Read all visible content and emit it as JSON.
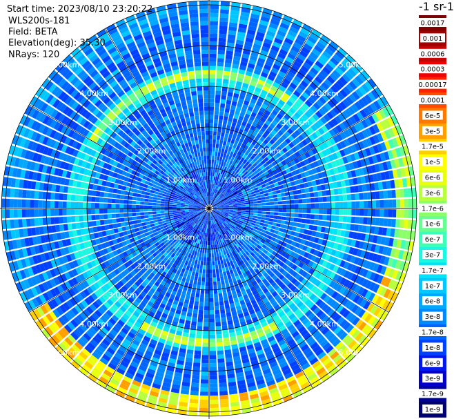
{
  "info": {
    "start_time": "Start time: 2023/08/10 23:20:22",
    "device": "WLS200s-181",
    "field": "Field: BETA",
    "elevation": "Elevation(deg): 35.30",
    "nrays": "NRays: 120"
  },
  "legend": {
    "title": "-1 sr-1",
    "entries": [
      {
        "label": "0.0017",
        "color": "#7f0000"
      },
      {
        "label": "0.001",
        "color": "#a00000"
      },
      {
        "label": "0.0006",
        "color": "#c80000"
      },
      {
        "label": "0.0003",
        "color": "#f00000"
      },
      {
        "label": "0.00017",
        "color": "#ff2000"
      },
      {
        "label": "0.0001",
        "color": "#ff4a00"
      },
      {
        "label": "6e-5",
        "color": "#ff7800"
      },
      {
        "label": "3e-5",
        "color": "#ffa000"
      },
      {
        "label": "1.7e-5",
        "color": "#ffcf00"
      },
      {
        "label": "1e-5",
        "color": "#ffff00"
      },
      {
        "label": "6e-6",
        "color": "#e8ff10"
      },
      {
        "label": "3e-6",
        "color": "#b8ff3e"
      },
      {
        "label": "1.7e-6",
        "color": "#8cff6b"
      },
      {
        "label": "1e-6",
        "color": "#66ff90"
      },
      {
        "label": "6e-7",
        "color": "#3effb8"
      },
      {
        "label": "3e-7",
        "color": "#1cf8e0"
      },
      {
        "label": "1.7e-7",
        "color": "#00e4f8"
      },
      {
        "label": "1e-7",
        "color": "#00c8ff"
      },
      {
        "label": "6e-8",
        "color": "#00a8ff"
      },
      {
        "label": "3e-8",
        "color": "#0088ff"
      },
      {
        "label": "1.7e-8",
        "color": "#0064ff"
      },
      {
        "label": "1e-8",
        "color": "#0040ff"
      },
      {
        "label": "6e-9",
        "color": "#0018f0"
      },
      {
        "label": "3e-9",
        "color": "#0000c8"
      },
      {
        "label": "1.7e-9",
        "color": "#00009a"
      },
      {
        "label": "1e-9",
        "color": "#000070"
      }
    ]
  },
  "chart_data": {
    "type": "heatmap",
    "title": "",
    "projection": "polar PPI",
    "range_ring_labels": [
      "1.00km",
      "2.00km",
      "3.00km",
      "4.00km",
      "5.00km"
    ],
    "range_rings_km": [
      1,
      2,
      3,
      4,
      5
    ],
    "max_range_km": 5.1,
    "n_rays": 120,
    "azimuth_step_deg": 3,
    "spoke_step_deg": 30,
    "range_gate_km": 0.1,
    "background_level": "3e-8 to 6e-8 (blue)",
    "features": [
      {
        "description": "enhanced ring",
        "range_km": 3.25,
        "azimuth_range_deg": [
          0,
          360
        ],
        "level": "1e-7 to 3e-7"
      },
      {
        "description": "bright ring segments",
        "range_km": 3.3,
        "azimuth_range_deg": [
          -45,
          30
        ],
        "level": "1e-6 to 1e-5"
      },
      {
        "description": "strong arc",
        "range_km": 4.9,
        "azimuth_range_deg": [
          100,
          240
        ],
        "level": "1e-5 to 6e-5"
      },
      {
        "description": "far-east edge",
        "range_km": 4.9,
        "azimuth_range_deg": [
          60,
          110
        ],
        "level": "3e-6 to 1e-5"
      }
    ]
  }
}
